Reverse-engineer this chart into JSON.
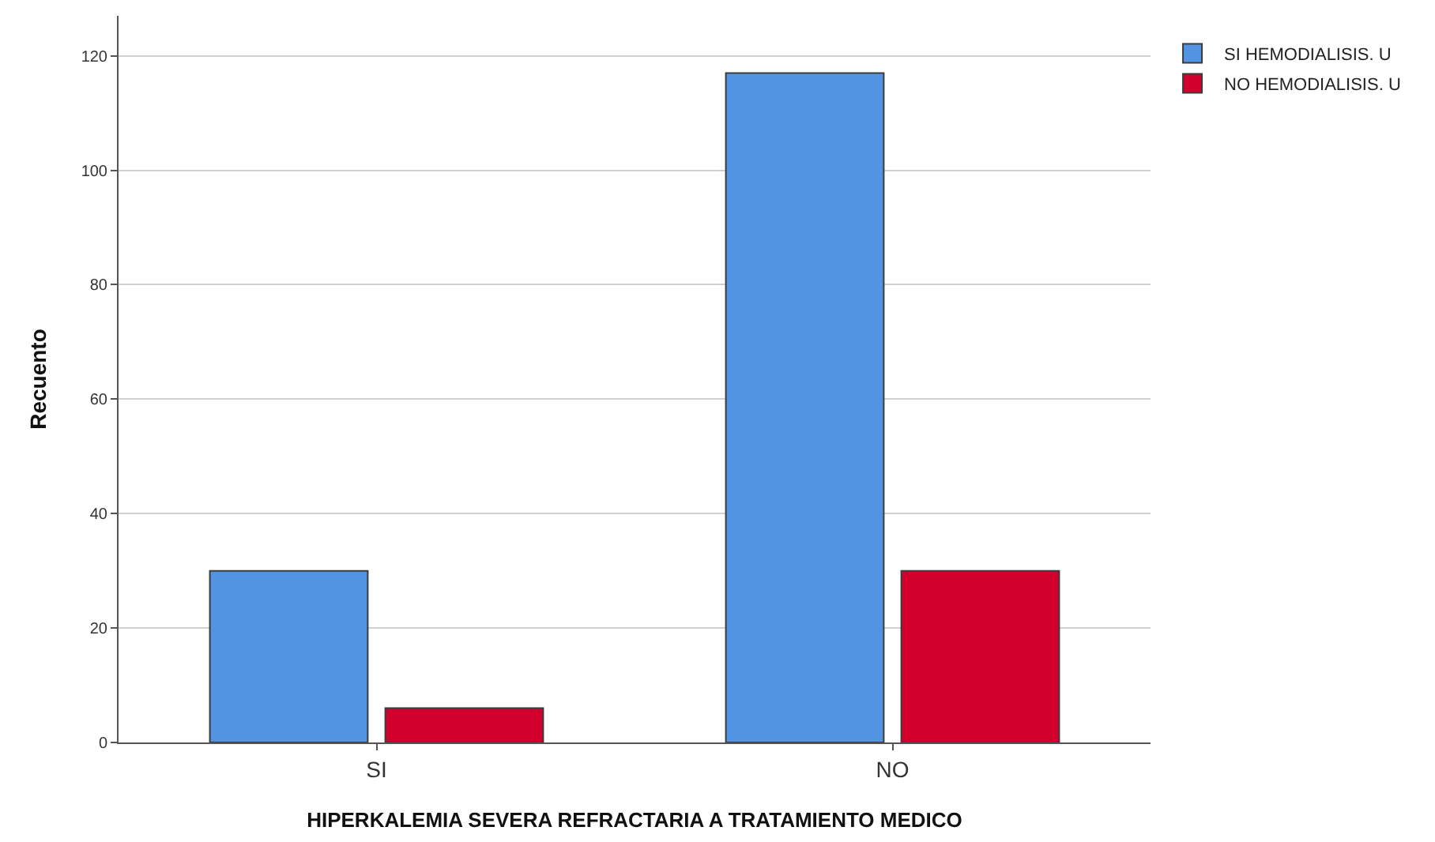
{
  "chart_data": {
    "type": "bar",
    "xlabel": "HIPERKALEMIA SEVERA REFRACTARIA A TRATAMIENTO MEDICO",
    "ylabel": "Recuento",
    "categories": [
      "SI",
      "NO"
    ],
    "series": [
      {
        "name": "SI HEMODIALISIS. U",
        "color": "#5294e2",
        "values": [
          30,
          117
        ]
      },
      {
        "name": "NO HEMODIALISIS. U",
        "color": "#d2002d",
        "values": [
          6,
          30
        ]
      }
    ],
    "ylim": [
      0,
      127
    ],
    "yticks": [
      0,
      20,
      40,
      60,
      80,
      100,
      120
    ],
    "grid": "y",
    "legend": "top right"
  }
}
